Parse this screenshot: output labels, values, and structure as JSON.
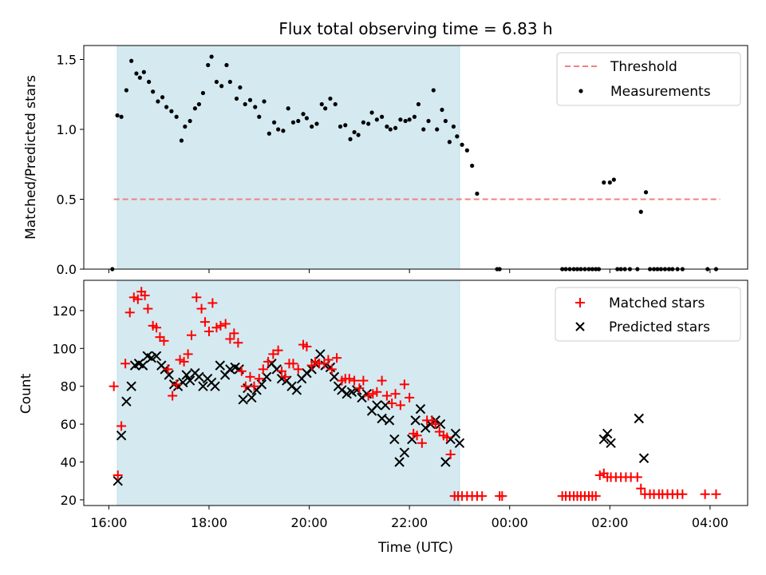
{
  "chart_data": {
    "type": "scatter",
    "title": "Flux total observing time = 6.83 h",
    "x_tick_labels": [
      "16:00",
      "18:00",
      "20:00",
      "22:00",
      "00:00",
      "02:00",
      "04:00"
    ],
    "x_tick_hours": [
      16,
      18,
      20,
      22,
      24,
      26,
      28
    ],
    "xlabel": "Time (UTC)",
    "xlim_hours": [
      15.5,
      28.75
    ],
    "observing_window_hours": [
      16.17,
      23.0
    ],
    "colors": {
      "window": "#d4eaf0",
      "threshold": "#f28080",
      "matched": "#ff0000",
      "predicted": "#000000"
    },
    "panels": [
      {
        "id": "ratio",
        "ylabel": "Matched/Predicted stars",
        "ylim": [
          0,
          1.6
        ],
        "y_tick_labels": [
          "0.0",
          "0.5",
          "1.0",
          "1.5"
        ],
        "y_ticks": [
          0,
          0.5,
          1.0,
          1.5
        ],
        "legend": {
          "placement": "upper-right",
          "threshold_label": "Threshold",
          "measurements_label": "Measurements"
        },
        "threshold": {
          "name": "Threshold",
          "value": 0.5,
          "x_range_hours": [
            16.1,
            28.2
          ]
        },
        "series": [
          {
            "name": "Measurements",
            "x_hours": [
              16.07,
              16.17,
              16.25,
              16.35,
              16.45,
              16.55,
              16.62,
              16.7,
              16.8,
              16.88,
              16.98,
              17.07,
              17.15,
              17.25,
              17.35,
              17.45,
              17.52,
              17.62,
              17.72,
              17.8,
              17.88,
              17.98,
              18.05,
              18.15,
              18.25,
              18.35,
              18.42,
              18.55,
              18.62,
              18.72,
              18.82,
              18.92,
              19.0,
              19.1,
              19.2,
              19.3,
              19.38,
              19.48,
              19.58,
              19.68,
              19.78,
              19.88,
              19.95,
              20.05,
              20.15,
              20.25,
              20.32,
              20.42,
              20.52,
              20.62,
              20.72,
              20.82,
              20.9,
              20.98,
              21.08,
              21.18,
              21.25,
              21.35,
              21.45,
              21.55,
              21.62,
              21.72,
              21.82,
              21.92,
              22.0,
              22.1,
              22.18,
              22.28,
              22.38,
              22.48,
              22.55,
              22.65,
              22.72,
              22.8,
              22.88,
              22.95,
              23.05,
              23.15,
              23.25,
              23.35,
              23.75,
              23.8,
              25.05,
              25.12,
              25.2,
              25.28,
              25.35,
              25.42,
              25.5,
              25.58,
              25.65,
              25.72,
              25.78,
              25.88,
              26.0,
              26.08,
              26.15,
              26.22,
              26.3,
              26.4,
              26.55,
              26.62,
              26.72,
              26.8,
              26.88,
              26.95,
              27.02,
              27.1,
              27.18,
              27.25,
              27.35,
              27.45,
              27.95,
              28.12
            ],
            "y": [
              0.0,
              1.1,
              1.09,
              1.28,
              1.49,
              1.4,
              1.37,
              1.41,
              1.34,
              1.27,
              1.2,
              1.23,
              1.16,
              1.13,
              1.09,
              0.92,
              1.02,
              1.06,
              1.15,
              1.18,
              1.26,
              1.46,
              1.52,
              1.34,
              1.31,
              1.46,
              1.34,
              1.22,
              1.3,
              1.18,
              1.21,
              1.16,
              1.09,
              1.2,
              0.97,
              1.05,
              1.0,
              0.99,
              1.15,
              1.05,
              1.06,
              1.11,
              1.08,
              1.02,
              1.04,
              1.18,
              1.15,
              1.22,
              1.18,
              1.02,
              1.03,
              0.93,
              0.98,
              0.96,
              1.05,
              1.04,
              1.12,
              1.07,
              1.09,
              1.02,
              1.0,
              1.01,
              1.07,
              1.06,
              1.07,
              1.09,
              1.18,
              1.0,
              1.06,
              1.28,
              1.0,
              1.14,
              1.06,
              0.91,
              1.02,
              0.95,
              0.89,
              0.85,
              0.74,
              0.54,
              0.0,
              0.0,
              0.0,
              0.0,
              0.0,
              0.0,
              0.0,
              0.0,
              0.0,
              0.0,
              0.0,
              0.0,
              0.0,
              0.62,
              0.62,
              0.64,
              0.0,
              0.0,
              0.0,
              0.0,
              0.0,
              0.41,
              0.55,
              0.0,
              0.0,
              0.0,
              0.0,
              0.0,
              0.0,
              0.0,
              0.0,
              0.0,
              0.0,
              0.0
            ]
          }
        ]
      },
      {
        "id": "count",
        "ylabel": "Count",
        "ylim": [
          17,
          136
        ],
        "y_tick_labels": [
          "20",
          "40",
          "60",
          "80",
          "100",
          "120"
        ],
        "y_ticks": [
          20,
          40,
          60,
          80,
          100,
          120
        ],
        "legend": {
          "placement": "upper-right",
          "matched_label": "Matched stars",
          "predicted_label": "Predicted stars"
        },
        "series": [
          {
            "name": "Matched stars",
            "marker": "+",
            "x_hours": [
              16.1,
              16.18,
              16.25,
              16.33,
              16.42,
              16.5,
              16.58,
              16.65,
              16.72,
              16.78,
              16.88,
              16.95,
              17.02,
              17.1,
              17.18,
              17.27,
              17.35,
              17.42,
              17.5,
              17.58,
              17.65,
              17.75,
              17.85,
              17.92,
              18.0,
              18.07,
              18.15,
              18.23,
              18.33,
              18.42,
              18.5,
              18.58,
              18.65,
              18.73,
              18.82,
              18.9,
              19.0,
              19.08,
              19.18,
              19.28,
              19.38,
              19.45,
              19.52,
              19.6,
              19.68,
              19.78,
              19.88,
              19.95,
              20.05,
              20.12,
              20.2,
              20.3,
              20.38,
              20.45,
              20.55,
              20.65,
              20.72,
              20.8,
              20.9,
              21.0,
              21.08,
              21.18,
              21.27,
              21.35,
              21.45,
              21.55,
              21.65,
              21.72,
              21.82,
              21.9,
              22.0,
              22.08,
              22.15,
              22.25,
              22.35,
              22.45,
              22.52,
              22.6,
              22.68,
              22.75,
              22.82,
              22.9,
              22.97,
              23.05,
              23.15,
              23.25,
              23.35,
              23.45,
              23.8,
              23.85,
              25.05,
              25.12,
              25.2,
              25.28,
              25.35,
              25.42,
              25.5,
              25.58,
              25.65,
              25.72,
              25.8,
              25.88,
              25.95,
              26.02,
              26.12,
              26.22,
              26.32,
              26.42,
              26.55,
              26.62,
              26.7,
              26.8,
              26.88,
              26.98,
              27.05,
              27.15,
              27.25,
              27.35,
              27.45,
              27.9,
              28.12
            ],
            "y": [
              80,
              33,
              59,
              92,
              119,
              127,
              126,
              130,
              128,
              121,
              112,
              111,
              106,
              104,
              89,
              75,
              81,
              94,
              93,
              97,
              107,
              127,
              121,
              114,
              109,
              124,
              111,
              112,
              113,
              105,
              108,
              103,
              88,
              80,
              85,
              80,
              84,
              89,
              93,
              97,
              99,
              88,
              85,
              92,
              92,
              89,
              102,
              101,
              91,
              93,
              92,
              92,
              94,
              89,
              95,
              83,
              84,
              84,
              83,
              79,
              83,
              75,
              76,
              77,
              83,
              75,
              71,
              76,
              70,
              81,
              74,
              55,
              54,
              50,
              62,
              62,
              60,
              56,
              54,
              53,
              44,
              22,
              22,
              22,
              22,
              22,
              22,
              22,
              22,
              22,
              22,
              22,
              22,
              22,
              22,
              22,
              22,
              22,
              22,
              22,
              33,
              34,
              32,
              32,
              32,
              32,
              32,
              32,
              32,
              26,
              23,
              23,
              23,
              23,
              23,
              23,
              23,
              23,
              23,
              23,
              23
            ]
          },
          {
            "name": "Predicted stars",
            "marker": "x",
            "x_hours": [
              16.18,
              16.25,
              16.35,
              16.45,
              16.52,
              16.6,
              16.68,
              16.77,
              16.85,
              16.95,
              17.05,
              17.12,
              17.2,
              17.3,
              17.38,
              17.48,
              17.55,
              17.62,
              17.72,
              17.8,
              17.88,
              17.97,
              18.05,
              18.12,
              18.22,
              18.32,
              18.42,
              18.52,
              18.6,
              18.68,
              18.77,
              18.85,
              18.95,
              19.05,
              19.15,
              19.25,
              19.35,
              19.45,
              19.55,
              19.65,
              19.75,
              19.85,
              19.95,
              20.05,
              20.12,
              20.22,
              20.32,
              20.42,
              20.5,
              20.58,
              20.65,
              20.75,
              20.85,
              20.95,
              21.05,
              21.15,
              21.25,
              21.35,
              21.45,
              21.52,
              21.6,
              21.7,
              21.8,
              21.9,
              22.05,
              22.12,
              22.22,
              22.32,
              22.42,
              22.52,
              22.62,
              22.72,
              22.82,
              22.92,
              23.0
            ],
            "y": [
              30,
              54,
              72,
              80,
              91,
              92,
              91,
              96,
              95,
              96,
              91,
              89,
              86,
              81,
              80,
              82,
              86,
              83,
              87,
              85,
              80,
              84,
              82,
              80,
              91,
              86,
              89,
              90,
              89,
              73,
              79,
              74,
              78,
              81,
              85,
              92,
              89,
              84,
              83,
              80,
              78,
              84,
              87,
              89,
              92,
              97,
              91,
              90,
              85,
              80,
              78,
              76,
              77,
              78,
              74,
              76,
              67,
              70,
              63,
              70,
              62,
              52,
              40,
              45,
              52,
              62,
              68,
              58,
              60,
              62,
              60,
              40,
              52,
              55,
              50
            ]
          }
        ],
        "late_predicted": {
          "x_hours": [
            25.88,
            25.95,
            26.02,
            26.58,
            26.68
          ],
          "y": [
            52,
            55,
            50,
            63,
            42
          ]
        }
      }
    ]
  }
}
